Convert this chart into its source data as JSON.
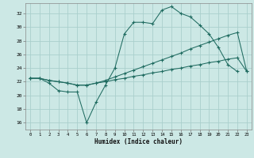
{
  "xlabel": "Humidex (Indice chaleur)",
  "x_ticks": [
    0,
    1,
    2,
    3,
    4,
    5,
    6,
    7,
    8,
    9,
    10,
    11,
    12,
    13,
    14,
    15,
    16,
    17,
    18,
    19,
    20,
    21,
    22,
    23
  ],
  "y_ticks": [
    16,
    18,
    20,
    22,
    24,
    26,
    28,
    30,
    32
  ],
  "xlim": [
    -0.5,
    23.5
  ],
  "ylim": [
    15.0,
    33.5
  ],
  "bg_color": "#cce8e5",
  "grid_color": "#aacfcc",
  "line_color": "#1f6b60",
  "curve1_x": [
    0,
    1,
    2,
    3,
    4,
    5,
    6,
    7,
    8,
    9,
    10,
    11,
    12,
    13,
    14,
    15,
    16,
    17,
    18,
    19,
    20,
    21,
    22
  ],
  "curve1_y": [
    22.5,
    22.5,
    21.8,
    20.7,
    20.5,
    20.5,
    16.0,
    19.0,
    21.5,
    24.0,
    29.0,
    30.7,
    30.7,
    30.5,
    32.5,
    33.0,
    32.0,
    31.5,
    30.3,
    29.0,
    27.0,
    24.5,
    23.5
  ],
  "curve2_x": [
    0,
    1,
    2,
    3,
    4,
    5,
    6,
    7,
    8,
    9,
    10,
    11,
    12,
    13,
    14,
    15,
    16,
    17,
    18,
    19,
    20,
    21,
    22,
    23
  ],
  "curve2_y": [
    22.5,
    22.5,
    22.2,
    22.0,
    21.8,
    21.5,
    21.5,
    21.8,
    22.2,
    22.7,
    23.2,
    23.7,
    24.2,
    24.7,
    25.2,
    25.7,
    26.2,
    26.8,
    27.3,
    27.8,
    28.3,
    28.8,
    29.2,
    23.5
  ],
  "curve3_x": [
    0,
    1,
    2,
    3,
    4,
    5,
    6,
    7,
    8,
    9,
    10,
    11,
    12,
    13,
    14,
    15,
    16,
    17,
    18,
    19,
    20,
    21,
    22,
    23
  ],
  "curve3_y": [
    22.5,
    22.5,
    22.2,
    22.0,
    21.8,
    21.5,
    21.5,
    21.8,
    22.0,
    22.3,
    22.5,
    22.8,
    23.0,
    23.3,
    23.5,
    23.8,
    24.0,
    24.3,
    24.5,
    24.8,
    25.0,
    25.3,
    25.5,
    23.5
  ]
}
